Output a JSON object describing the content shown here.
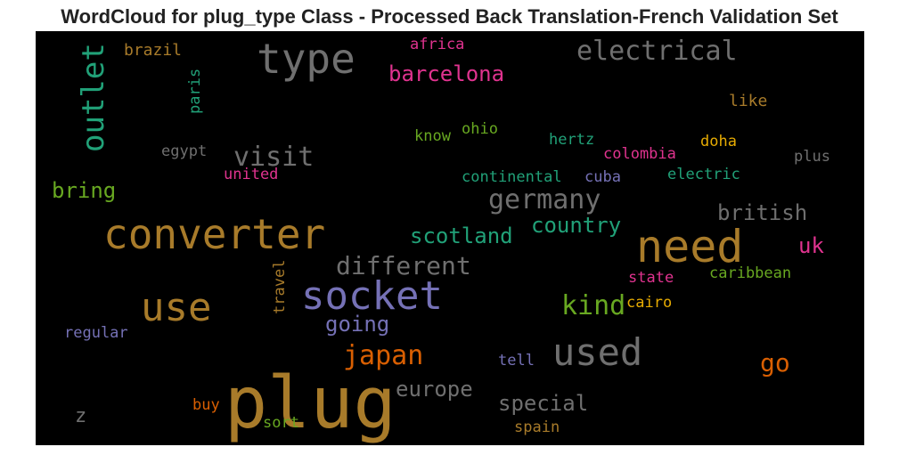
{
  "title": "WordCloud for plug_type Class - Processed Back Translation-French Validation Set",
  "colors": {
    "gold": "#a87b2a",
    "gray": "#6f6f6f",
    "green": "#21a178",
    "magenta": "#e0338f",
    "olive": "#68a821",
    "purple": "#7571b6",
    "orange": "#d95f02",
    "yellow": "#e6ab02"
  },
  "words": [
    {
      "text": "plug",
      "color": "gold"
    },
    {
      "text": "socket",
      "color": "purple"
    },
    {
      "text": "converter",
      "color": "gold"
    },
    {
      "text": "need",
      "color": "gold"
    },
    {
      "text": "type",
      "color": "gray"
    },
    {
      "text": "use",
      "color": "gold"
    },
    {
      "text": "used",
      "color": "gray"
    },
    {
      "text": "outlet",
      "color": "green"
    },
    {
      "text": "electrical",
      "color": "gray"
    },
    {
      "text": "different",
      "color": "gray"
    },
    {
      "text": "visit",
      "color": "gray"
    },
    {
      "text": "germany",
      "color": "gray"
    },
    {
      "text": "barcelona",
      "color": "magenta"
    },
    {
      "text": "japan",
      "color": "orange"
    },
    {
      "text": "kind",
      "color": "olive"
    },
    {
      "text": "scotland",
      "color": "green"
    },
    {
      "text": "country",
      "color": "green"
    },
    {
      "text": "british",
      "color": "gray"
    },
    {
      "text": "special",
      "color": "gray"
    },
    {
      "text": "europe",
      "color": "gray"
    },
    {
      "text": "going",
      "color": "purple"
    },
    {
      "text": "go",
      "color": "orange"
    },
    {
      "text": "bring",
      "color": "olive"
    },
    {
      "text": "uk",
      "color": "magenta"
    },
    {
      "text": "brazil",
      "color": "gold"
    },
    {
      "text": "africa",
      "color": "magenta"
    },
    {
      "text": "paris",
      "color": "green"
    },
    {
      "text": "like",
      "color": "gold"
    },
    {
      "text": "ohio",
      "color": "olive"
    },
    {
      "text": "know",
      "color": "olive"
    },
    {
      "text": "hertz",
      "color": "green"
    },
    {
      "text": "doha",
      "color": "yellow"
    },
    {
      "text": "colombia",
      "color": "magenta"
    },
    {
      "text": "egypt",
      "color": "gray"
    },
    {
      "text": "plus",
      "color": "gray"
    },
    {
      "text": "united",
      "color": "magenta"
    },
    {
      "text": "continental",
      "color": "green"
    },
    {
      "text": "cuba",
      "color": "purple"
    },
    {
      "text": "electric",
      "color": "green"
    },
    {
      "text": "travel",
      "color": "gold"
    },
    {
      "text": "state",
      "color": "magenta"
    },
    {
      "text": "caribbean",
      "color": "olive"
    },
    {
      "text": "cairo",
      "color": "yellow"
    },
    {
      "text": "regular",
      "color": "purple"
    },
    {
      "text": "tell",
      "color": "purple"
    },
    {
      "text": "buy",
      "color": "orange"
    },
    {
      "text": "z",
      "color": "gray"
    },
    {
      "text": "sort",
      "color": "olive"
    },
    {
      "text": "spain",
      "color": "gold"
    }
  ]
}
